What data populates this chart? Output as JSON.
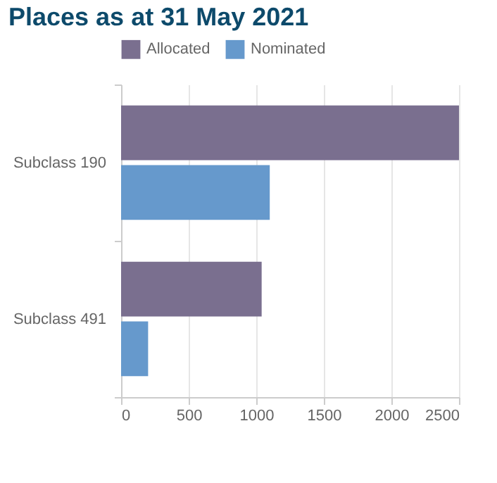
{
  "chart_data": {
    "type": "bar",
    "orientation": "horizontal",
    "title": "Places as at 31 May 2021",
    "categories": [
      "Subclass 190",
      "Subclass 491"
    ],
    "series": [
      {
        "name": "Allocated",
        "color": "#7a6f8f",
        "values": [
          2500,
          1040
        ]
      },
      {
        "name": "Nominated",
        "color": "#6699cc",
        "values": [
          1100,
          200
        ]
      }
    ],
    "xlim": [
      0,
      2500
    ],
    "xticks": [
      0,
      500,
      1000,
      1500,
      2000,
      2500
    ],
    "grid": "x",
    "legend": "top"
  }
}
